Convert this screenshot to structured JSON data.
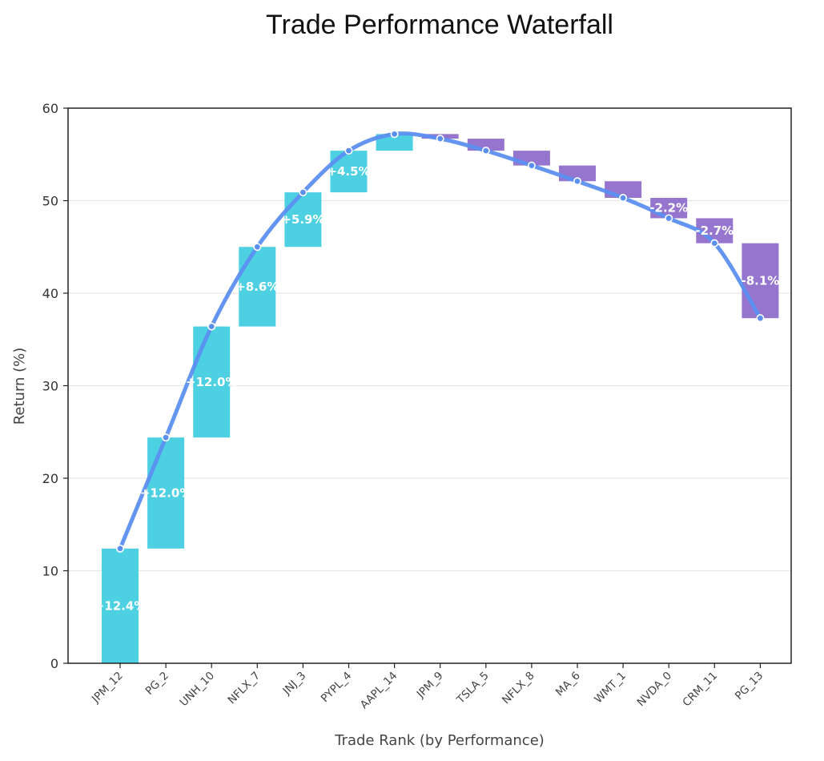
{
  "chart_data": {
    "type": "bar",
    "title": "Trade Performance Waterfall",
    "xlabel": "Trade Rank (by Performance)",
    "ylabel": "Return (%)",
    "ylim": [
      0,
      60
    ],
    "yticks": [
      0,
      10,
      20,
      30,
      40,
      50,
      60
    ],
    "grid": "horizontal",
    "categories": [
      "JPM_12",
      "PG_2",
      "UNH_10",
      "NFLX_7",
      "JNJ_3",
      "PYPL_4",
      "AAPL_14",
      "JPM_9",
      "TSLA_5",
      "NFLX_8",
      "MA_6",
      "WMT_1",
      "NVDA_0",
      "CRM_11",
      "PG_13"
    ],
    "values": [
      12.4,
      12.0,
      12.0,
      8.6,
      5.9,
      4.5,
      1.8,
      -0.5,
      -1.3,
      -1.6,
      -1.7,
      -1.8,
      -2.2,
      -2.7,
      -8.1
    ],
    "cumulative": [
      12.4,
      24.4,
      36.4,
      45.0,
      50.9,
      55.4,
      57.2,
      56.7,
      55.4,
      53.8,
      52.1,
      50.3,
      48.1,
      45.4,
      37.3
    ],
    "data_labels": [
      "+12.4%",
      "+12.0%",
      "+12.0%",
      "+8.6%",
      "+5.9%",
      "+4.5%",
      "",
      "",
      "",
      "",
      "",
      "",
      "-2.2%",
      "-2.7%",
      "-8.1%"
    ],
    "colors": {
      "positive": "#4dd0e1",
      "negative": "#9575cd",
      "line": "#5b8ff0"
    }
  }
}
